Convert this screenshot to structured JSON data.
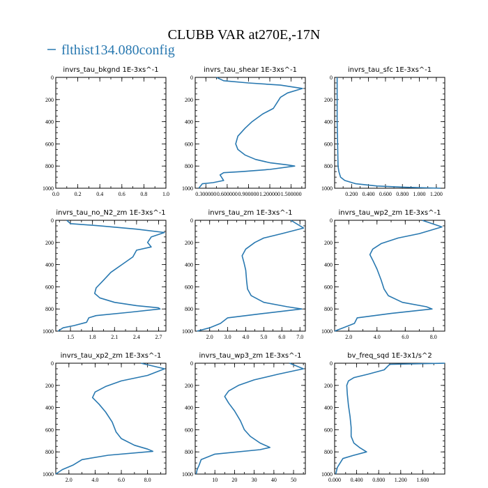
{
  "title": "CLUBB VAR at270E,-17N",
  "legend": {
    "label": "flthist134.080config",
    "color": "#2878b0"
  },
  "chart_data": [
    {
      "type": "line",
      "title": "invrs_tau_bkgnd   1E-3xs^-1",
      "xlim": [
        0,
        1
      ],
      "ylim": [
        0,
        1000
      ],
      "y_inverted": true,
      "xticks": [
        "0.0",
        "0.2",
        "0.4",
        "0.6",
        "0.8",
        "1.0"
      ],
      "xtick_values": [
        0,
        0.2,
        0.4,
        0.6,
        0.8,
        1.0
      ],
      "yticks": [
        "0",
        "200",
        "400",
        "600",
        "800",
        "1000"
      ],
      "ytick_values": [
        0,
        200,
        400,
        600,
        800,
        1000
      ],
      "series": [
        {
          "x": [],
          "y": []
        }
      ]
    },
    {
      "type": "line",
      "title": "invrs_tau_shear   1E-3xs^-1",
      "xlim": [
        0.15,
        1.7
      ],
      "ylim": [
        0,
        1000
      ],
      "y_inverted": true,
      "xticks": [
        "0.300000",
        "0.600000",
        "0.900000",
        "1.200000",
        "1.500000"
      ],
      "xtick_values": [
        0.3,
        0.6,
        0.9,
        1.2,
        1.5
      ],
      "yticks": [
        "0",
        "200",
        "400",
        "600",
        "800",
        "1000"
      ],
      "ytick_values": [
        0,
        200,
        400,
        600,
        800,
        1000
      ],
      "series": [
        {
          "x": [
            0.45,
            0.55,
            0.9,
            1.35,
            1.66,
            1.45,
            1.35,
            1.3,
            1.25,
            1.1,
            0.95,
            0.85,
            0.75,
            0.72,
            0.75,
            0.85,
            1.0,
            1.2,
            1.45,
            1.55,
            1.2,
            0.8,
            0.55,
            0.5,
            0.55,
            0.4,
            0.25,
            0.2
          ],
          "y": [
            0,
            30,
            50,
            70,
            100,
            140,
            180,
            230,
            280,
            330,
            400,
            460,
            530,
            600,
            650,
            700,
            740,
            770,
            790,
            800,
            830,
            850,
            860,
            880,
            930,
            950,
            960,
            1000
          ]
        }
      ]
    },
    {
      "type": "line",
      "title": "invrs_tau_sfc   1E-3xs^-1",
      "xlim": [
        0,
        1.3
      ],
      "ylim": [
        0,
        1000
      ],
      "y_inverted": true,
      "xticks": [
        "0.200",
        "0.400",
        "0.600",
        "0.800",
        "1.000",
        "1.200"
      ],
      "xtick_values": [
        0.2,
        0.4,
        0.6,
        0.8,
        1.0,
        1.2
      ],
      "yticks": [
        "0",
        "200",
        "400",
        "600",
        "800",
        "1000"
      ],
      "ytick_values": [
        0,
        200,
        400,
        600,
        800,
        1000
      ],
      "series": [
        {
          "x": [
            0.03,
            0.03,
            0.03,
            0.035,
            0.04,
            0.05,
            0.07,
            0.12,
            0.25,
            0.5,
            0.8,
            1.0,
            1.25
          ],
          "y": [
            0,
            200,
            400,
            600,
            800,
            850,
            900,
            930,
            960,
            980,
            990,
            995,
            1000
          ]
        }
      ]
    },
    {
      "type": "line",
      "title": "invrs_tau_no_N2_zm   1E-3xs^-1",
      "xlim": [
        1.3,
        2.8
      ],
      "ylim": [
        0,
        1000
      ],
      "y_inverted": true,
      "xticks": [
        "1.5",
        "1.8",
        "2.1",
        "2.4",
        "2.7"
      ],
      "xtick_values": [
        1.5,
        1.8,
        2.1,
        2.4,
        2.7
      ],
      "yticks": [
        "0",
        "200",
        "400",
        "600",
        "800",
        "1000"
      ],
      "ytick_values": [
        0,
        200,
        400,
        600,
        800,
        1000
      ],
      "series": [
        {
          "x": [
            1.45,
            1.5,
            1.9,
            2.4,
            2.78,
            2.6,
            2.55,
            2.6,
            2.4,
            2.35,
            2.2,
            2.05,
            1.95,
            1.85,
            1.83,
            1.9,
            2.1,
            2.4,
            2.7,
            2.72,
            2.3,
            1.85,
            1.75,
            1.72,
            1.55,
            1.4,
            1.33
          ],
          "y": [
            0,
            30,
            50,
            80,
            110,
            150,
            200,
            240,
            270,
            330,
            400,
            470,
            540,
            610,
            660,
            700,
            740,
            770,
            790,
            800,
            830,
            860,
            880,
            920,
            950,
            970,
            1000
          ]
        }
      ]
    },
    {
      "type": "line",
      "title": "invrs_tau_zm   1E-3xs^-1",
      "xlim": [
        1.2,
        7.3
      ],
      "ylim": [
        0,
        1000
      ],
      "y_inverted": true,
      "xticks": [
        "2.0",
        "3.0",
        "4.0",
        "5.0",
        "6.0",
        "7.0"
      ],
      "xtick_values": [
        2,
        3,
        4,
        5,
        6,
        7
      ],
      "yticks": [
        "0",
        "200",
        "400",
        "600",
        "800",
        "1000"
      ],
      "ytick_values": [
        0,
        200,
        400,
        600,
        800,
        1000
      ],
      "series": [
        {
          "x": [
            6.5,
            7.2,
            6.0,
            5.0,
            4.5,
            4.0,
            3.8,
            3.9,
            4.0,
            4.05,
            4.1,
            4.3,
            5.0,
            6.3,
            7.1,
            5.0,
            3.0,
            2.6,
            2.0,
            1.3
          ],
          "y": [
            0,
            70,
            120,
            160,
            200,
            260,
            320,
            380,
            450,
            550,
            620,
            680,
            740,
            780,
            800,
            840,
            880,
            930,
            970,
            1000
          ]
        }
      ]
    },
    {
      "type": "line",
      "title": "invrs_tau_wp2_zm   1E-3xs^-1",
      "xlim": [
        1.0,
        8.8
      ],
      "ylim": [
        0,
        1000
      ],
      "y_inverted": true,
      "xticks": [
        "2.0",
        "4.0",
        "6.0",
        "8.0"
      ],
      "xtick_values": [
        2,
        4,
        6,
        8
      ],
      "yticks": [
        "0",
        "200",
        "400",
        "600",
        "800",
        "1000"
      ],
      "ytick_values": [
        0,
        200,
        400,
        600,
        800,
        1000
      ],
      "series": [
        {
          "x": [
            7.2,
            8.6,
            7.0,
            5.5,
            4.3,
            3.7,
            3.5,
            3.7,
            4.0,
            4.3,
            4.5,
            4.8,
            5.8,
            7.5,
            7.9,
            5.0,
            2.6,
            2.4,
            1.6,
            1.0
          ],
          "y": [
            0,
            60,
            120,
            160,
            210,
            260,
            310,
            360,
            440,
            540,
            620,
            680,
            740,
            780,
            800,
            840,
            880,
            930,
            970,
            1000
          ]
        }
      ]
    },
    {
      "type": "line",
      "title": "invrs_tau_xp2_zm   1E-3xs^-1",
      "xlim": [
        1.0,
        9.4
      ],
      "ylim": [
        0,
        1000
      ],
      "y_inverted": true,
      "xticks": [
        "2.0",
        "4.0",
        "6.0",
        "8.0"
      ],
      "xtick_values": [
        2,
        4,
        6,
        8
      ],
      "yticks": [
        "0",
        "200",
        "400",
        "600",
        "800",
        "1000"
      ],
      "ytick_values": [
        0,
        200,
        400,
        600,
        800,
        1000
      ],
      "series": [
        {
          "x": [
            7.5,
            9.3,
            8.0,
            6.0,
            4.8,
            4.0,
            3.8,
            4.3,
            4.8,
            5.3,
            5.6,
            6.0,
            7.0,
            8.0,
            8.4,
            5.0,
            3.0,
            2.3,
            1.5,
            1.0
          ],
          "y": [
            0,
            50,
            110,
            160,
            210,
            260,
            310,
            370,
            440,
            530,
            620,
            680,
            740,
            775,
            795,
            830,
            870,
            920,
            960,
            1000
          ]
        }
      ]
    },
    {
      "type": "line",
      "title": "invrs_tau_wp3_zm   1E-3xs^-1",
      "xlim": [
        0,
        56
      ],
      "ylim": [
        0,
        1000
      ],
      "y_inverted": true,
      "xticks": [
        "10",
        "20",
        "30",
        "40",
        "50"
      ],
      "xtick_values": [
        10,
        20,
        30,
        40,
        50
      ],
      "yticks": [
        "0",
        "200",
        "400",
        "600",
        "800",
        "1000"
      ],
      "ytick_values": [
        0,
        200,
        400,
        600,
        800,
        1000
      ],
      "series": [
        {
          "x": [
            48,
            55,
            42,
            30,
            22,
            17,
            15,
            17,
            20,
            23,
            25,
            28,
            33,
            38,
            33,
            10,
            3,
            2,
            1,
            0.5
          ],
          "y": [
            0,
            50,
            100,
            150,
            200,
            250,
            300,
            360,
            430,
            520,
            600,
            660,
            720,
            760,
            780,
            820,
            870,
            920,
            960,
            1000
          ]
        }
      ]
    },
    {
      "type": "line",
      "title": "bv_freq_sqd   1E-3x1/s^2",
      "xlim": [
        0,
        2.0
      ],
      "ylim": [
        0,
        1000
      ],
      "y_inverted": true,
      "xticks": [
        "0.000",
        "0.400",
        "0.800",
        "1.200",
        "1.600"
      ],
      "xtick_values": [
        0,
        0.4,
        0.8,
        1.2,
        1.6
      ],
      "yticks": [
        "0",
        "200",
        "400",
        "600",
        "800",
        "1000"
      ],
      "ytick_values": [
        0,
        200,
        400,
        600,
        800,
        1000
      ],
      "series": [
        {
          "x": [
            2.0,
            1.0,
            0.9,
            0.6,
            0.35,
            0.25,
            0.22,
            0.23,
            0.25,
            0.28,
            0.3,
            0.3,
            0.35,
            0.45,
            0.58,
            0.35,
            0.15,
            0.1,
            0.05,
            0.02
          ],
          "y": [
            0,
            10,
            60,
            100,
            130,
            160,
            200,
            280,
            380,
            480,
            580,
            660,
            720,
            760,
            800,
            830,
            860,
            900,
            940,
            1000
          ]
        }
      ]
    }
  ]
}
